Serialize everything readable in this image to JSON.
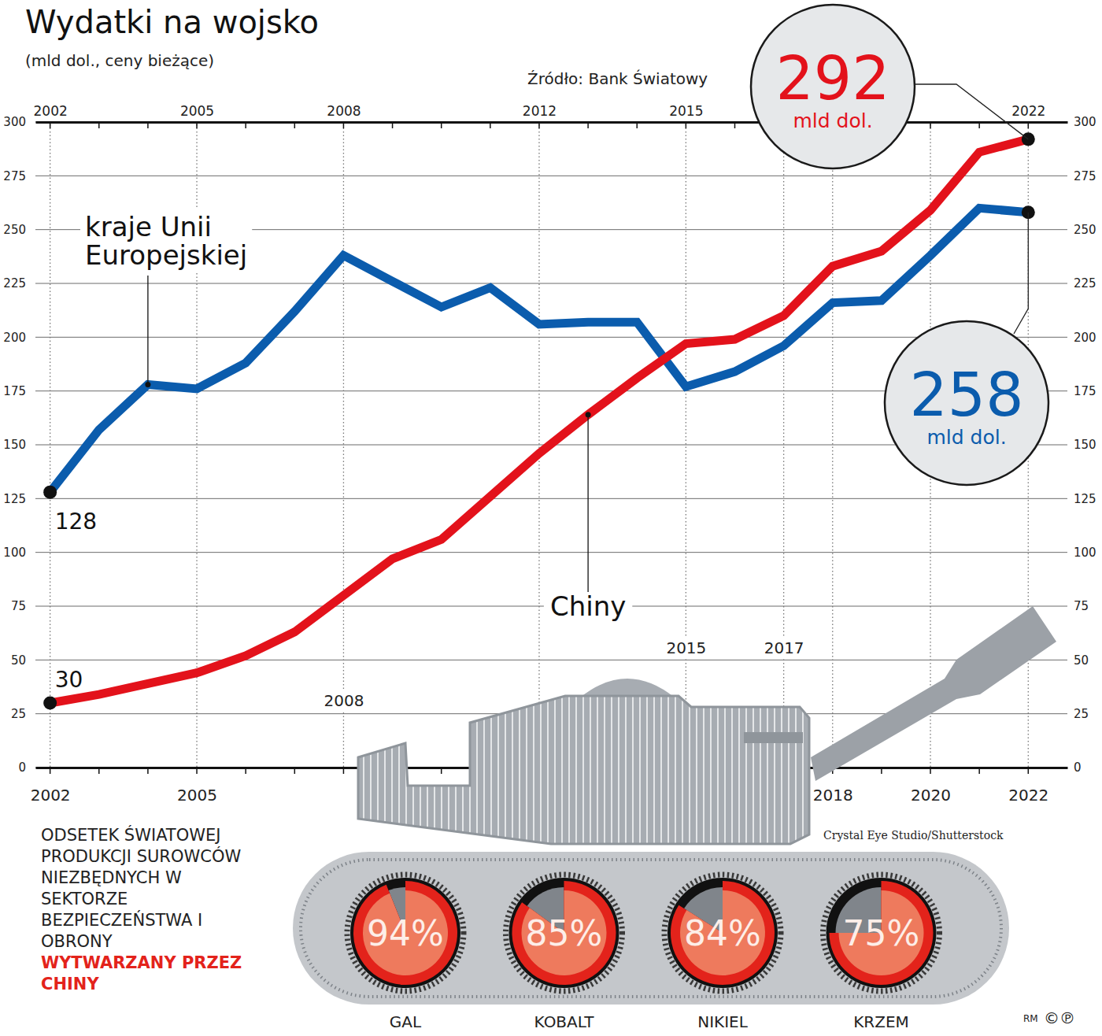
{
  "chart_data": [
    {
      "type": "line",
      "title": "Wydatki na wojsko",
      "subtitle": "(mld dol., ceny bieżące)",
      "source": "Źródło: Bank Światowy",
      "unit_label": "mld dol.",
      "x": [
        2002,
        2003,
        2004,
        2005,
        2006,
        2007,
        2008,
        2009,
        2010,
        2011,
        2012,
        2013,
        2014,
        2015,
        2016,
        2017,
        2018,
        2019,
        2020,
        2021,
        2022
      ],
      "xlim": [
        2001.7,
        2022.8
      ],
      "xticks": [
        2002,
        2005,
        2008,
        2015,
        2017,
        2018,
        2020,
        2022
      ],
      "x2ticks": [
        2002,
        2005,
        2008,
        2012,
        2015,
        2022
      ],
      "ylim": [
        0,
        300
      ],
      "yticks": [
        0,
        25,
        50,
        75,
        100,
        125,
        150,
        175,
        200,
        225,
        250,
        275,
        300
      ],
      "grid": true,
      "series": [
        {
          "name": "kraje Unii Europejskiej",
          "color": "#0b5cad",
          "values": [
            128,
            157,
            178,
            176,
            188,
            212,
            238,
            226,
            214,
            223,
            206,
            207,
            207,
            177,
            184,
            196,
            216,
            217,
            238,
            260,
            258
          ],
          "value_labels": [
            "128",
            null,
            null,
            null,
            null,
            null,
            null,
            null,
            null,
            null,
            null,
            null,
            null,
            null,
            null,
            null,
            null,
            null,
            null,
            null,
            "258"
          ]
        },
        {
          "name": "Chiny",
          "color": "#e3121b",
          "values": [
            30,
            34,
            39,
            44,
            52,
            63,
            80,
            97,
            106,
            126,
            146,
            164,
            181,
            197,
            199,
            210,
            233,
            240,
            259,
            286,
            292
          ],
          "value_labels": [
            "30",
            null,
            null,
            null,
            null,
            null,
            null,
            null,
            null,
            null,
            null,
            null,
            null,
            null,
            null,
            null,
            null,
            null,
            null,
            null,
            "292"
          ]
        }
      ]
    },
    {
      "type": "pie",
      "title": "ODSETEK ŚWIATOWEJ PRODUKCJI SUROWCÓW NIEZBĘDNYCH W SEKTORZE BEZPIECZEŃSTWA I OBRONY",
      "subtitle": "WYTWARZANY PRZEZ CHINY",
      "categories": [
        "GAL",
        "KOBALT",
        "NIKIEL",
        "KRZEM"
      ],
      "values": [
        94,
        85,
        84,
        75
      ],
      "value_labels": [
        "94%",
        "85%",
        "84%",
        "75%"
      ],
      "ylim": [
        0,
        100
      ],
      "data_labels": true,
      "color": "#e3231b"
    }
  ],
  "credits": {
    "photo": "Crystal Eye Studio/Shutterstock",
    "author": "RM",
    "rights": "©℗"
  }
}
